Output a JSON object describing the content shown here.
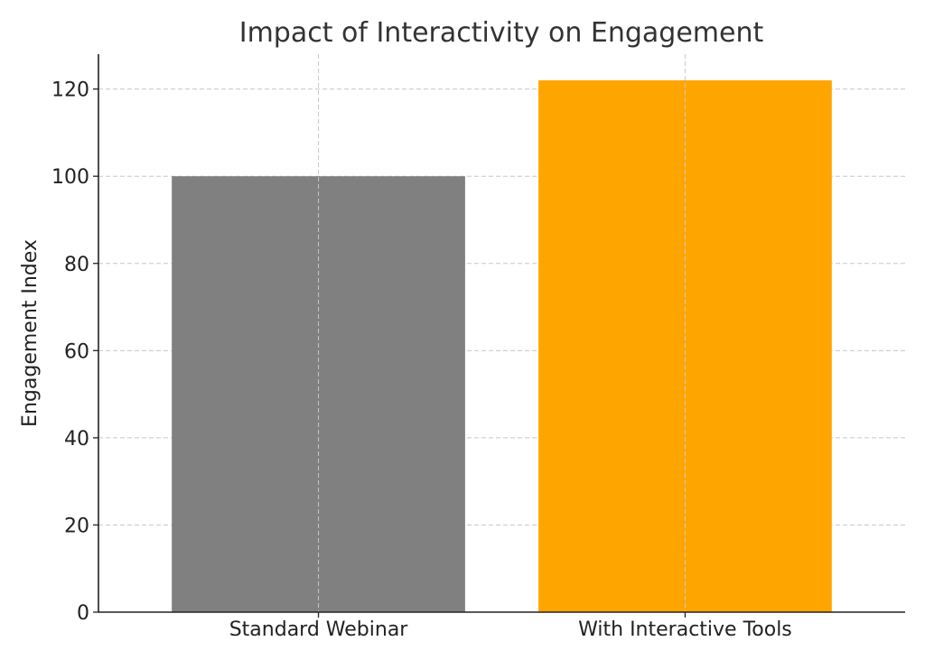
{
  "chart_data": {
    "type": "bar",
    "title": "Impact of Interactivity on Engagement",
    "xlabel": "",
    "ylabel": "Engagement Index",
    "categories": [
      "Standard Webinar",
      "With Interactive Tools"
    ],
    "values": [
      100,
      122
    ],
    "colors": [
      "#808080",
      "#FFA500"
    ],
    "ylim": [
      0,
      128
    ],
    "yticks": [
      0,
      20,
      40,
      60,
      80,
      100,
      120
    ],
    "grid": true
  }
}
